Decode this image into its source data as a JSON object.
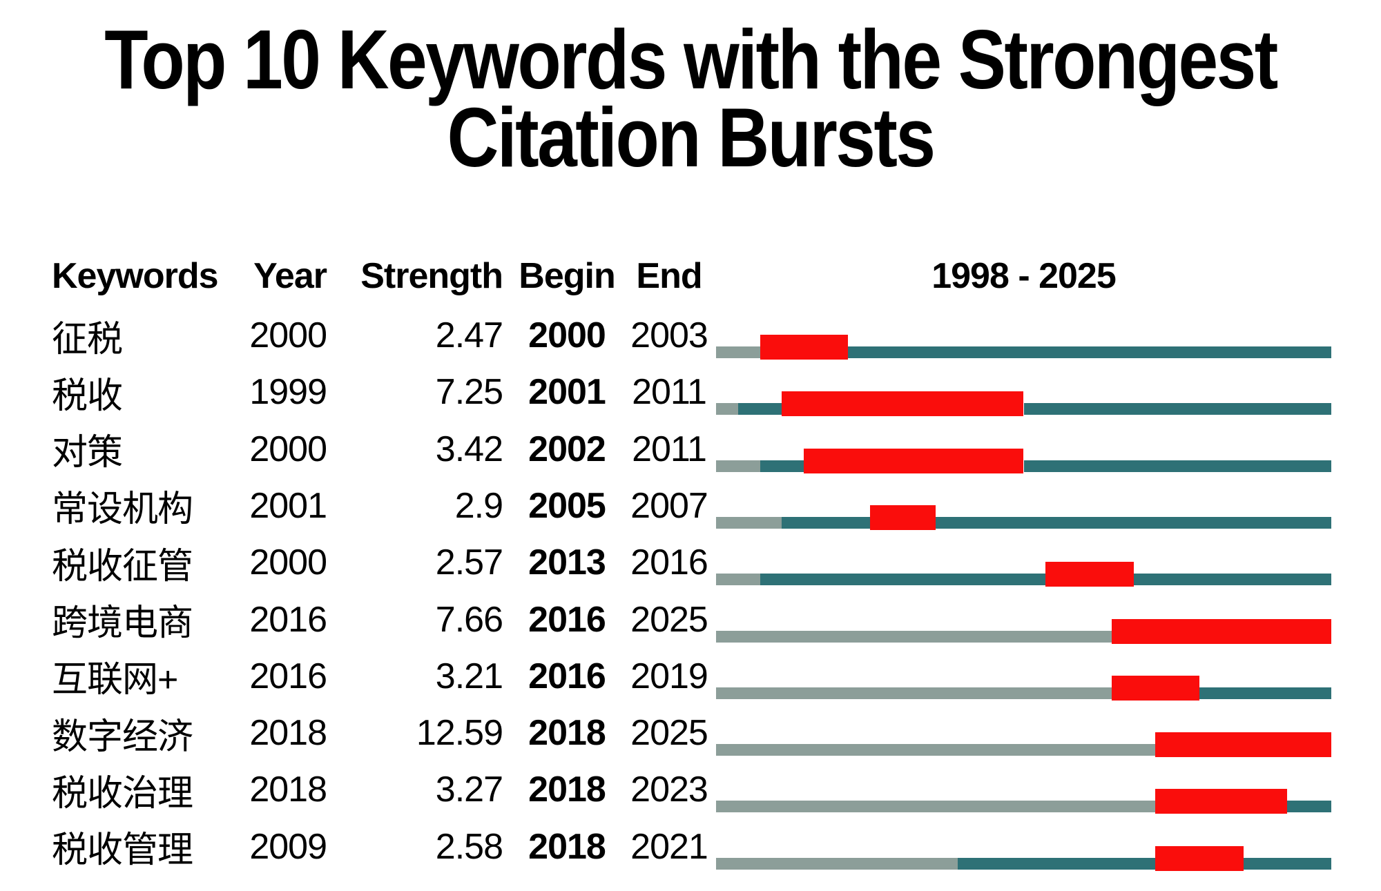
{
  "title": {
    "line1": "Top 10 Keywords with the Strongest",
    "line2": "Citation Bursts"
  },
  "table": {
    "headers": {
      "keywords": "Keywords",
      "year": "Year",
      "strength": "Strength",
      "begin": "Begin",
      "end": "End"
    },
    "timeline": {
      "label": "1998 - 2025",
      "start": 1998,
      "end": 2025
    },
    "rows": [
      {
        "keyword": "征税",
        "year": "2000",
        "strength": "2.47",
        "begin": "2000",
        "end": "2003"
      },
      {
        "keyword": "税收",
        "year": "1999",
        "strength": "7.25",
        "begin": "2001",
        "end": "2011"
      },
      {
        "keyword": "对策",
        "year": "2000",
        "strength": "3.42",
        "begin": "2002",
        "end": "2011"
      },
      {
        "keyword": "常设机构",
        "year": "2001",
        "strength": "2.9",
        "begin": "2005",
        "end": "2007"
      },
      {
        "keyword": "税收征管",
        "year": "2000",
        "strength": "2.57",
        "begin": "2013",
        "end": "2016"
      },
      {
        "keyword": "跨境电商",
        "year": "2016",
        "strength": "7.66",
        "begin": "2016",
        "end": "2025"
      },
      {
        "keyword": "互联网+",
        "year": "2016",
        "strength": "3.21",
        "begin": "2016",
        "end": "2019"
      },
      {
        "keyword": "数字经济",
        "year": "2018",
        "strength": "12.59",
        "begin": "2018",
        "end": "2025"
      },
      {
        "keyword": "税收治理",
        "year": "2018",
        "strength": "3.27",
        "begin": "2018",
        "end": "2023"
      },
      {
        "keyword": "税收管理",
        "year": "2009",
        "strength": "2.58",
        "begin": "2018",
        "end": "2021"
      }
    ]
  },
  "colors": {
    "burst_red": "#fa0d0c",
    "active_teal": "#2e7176",
    "pre_appearance_gray": "#8c9e99",
    "text": "#000000",
    "background": "#ffffff"
  },
  "chart_data": {
    "type": "table",
    "title": "Top 10 Keywords with the Strongest Citation Bursts",
    "columns": [
      "Keywords",
      "Year",
      "Strength",
      "Begin",
      "End"
    ],
    "timeline_range": [
      1998,
      2025
    ],
    "rows": [
      {
        "keyword": "征税",
        "year": 2000,
        "strength": 2.47,
        "begin": 2000,
        "end": 2003
      },
      {
        "keyword": "税收",
        "year": 1999,
        "strength": 7.25,
        "begin": 2001,
        "end": 2011
      },
      {
        "keyword": "对策",
        "year": 2000,
        "strength": 3.42,
        "begin": 2002,
        "end": 2011
      },
      {
        "keyword": "常设机构",
        "year": 2001,
        "strength": 2.9,
        "begin": 2005,
        "end": 2007
      },
      {
        "keyword": "税收征管",
        "year": 2000,
        "strength": 2.57,
        "begin": 2013,
        "end": 2016
      },
      {
        "keyword": "跨境电商",
        "year": 2016,
        "strength": 7.66,
        "begin": 2016,
        "end": 2025
      },
      {
        "keyword": "互联网+",
        "year": 2016,
        "strength": 3.21,
        "begin": 2016,
        "end": 2019
      },
      {
        "keyword": "数字经济",
        "year": 2018,
        "strength": 12.59,
        "begin": 2018,
        "end": 2025
      },
      {
        "keyword": "税收治理",
        "year": 2018,
        "strength": 3.27,
        "begin": 2018,
        "end": 2023
      },
      {
        "keyword": "税收管理",
        "year": 2009,
        "strength": 2.58,
        "begin": 2018,
        "end": 2021
      }
    ],
    "bar_encoding": {
      "red": "burst interval from Begin through End",
      "teal": "years keyword is active outside burst",
      "gray": "timeline years before keyword first appears"
    }
  }
}
